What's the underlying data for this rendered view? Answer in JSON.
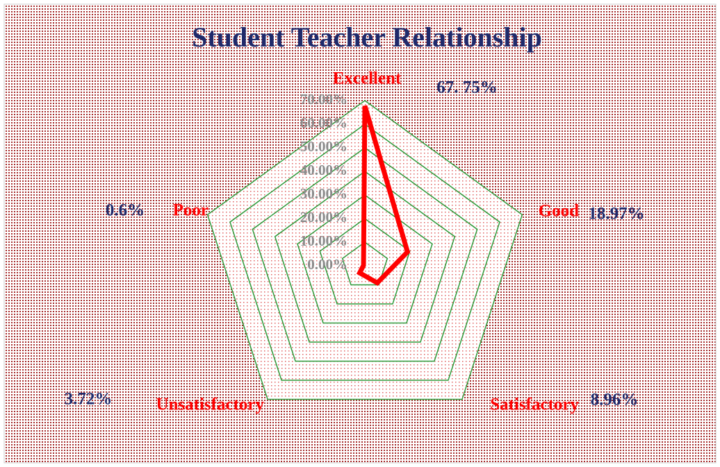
{
  "chart_data": {
    "type": "radar",
    "title": "Student Teacher Relationship",
    "categories": [
      "Excellent",
      "Good",
      "Satisfactory",
      "Unsatisfactory",
      "Poor"
    ],
    "series": [
      {
        "name": "Student Teacher Relationship",
        "color": "#ff0000",
        "values": [
          67.75,
          18.97,
          8.96,
          3.72,
          0.6
        ],
        "value_labels": [
          "67. 75%",
          "18.97%",
          "8.96%",
          "3.72%",
          "0.6%"
        ]
      }
    ],
    "ylim": [
      0,
      70
    ],
    "yticks": [
      {
        "value": 0,
        "label": "0.00%"
      },
      {
        "value": 10,
        "label": "10.00%"
      },
      {
        "value": 20,
        "label": "20.00%"
      },
      {
        "value": 30,
        "label": "30.00%"
      },
      {
        "value": 40,
        "label": "40.00%"
      },
      {
        "value": 50,
        "label": "50.00%"
      },
      {
        "value": 60,
        "label": "60.00%"
      },
      {
        "value": 70,
        "label": "70.00%"
      }
    ],
    "grid": true
  }
}
